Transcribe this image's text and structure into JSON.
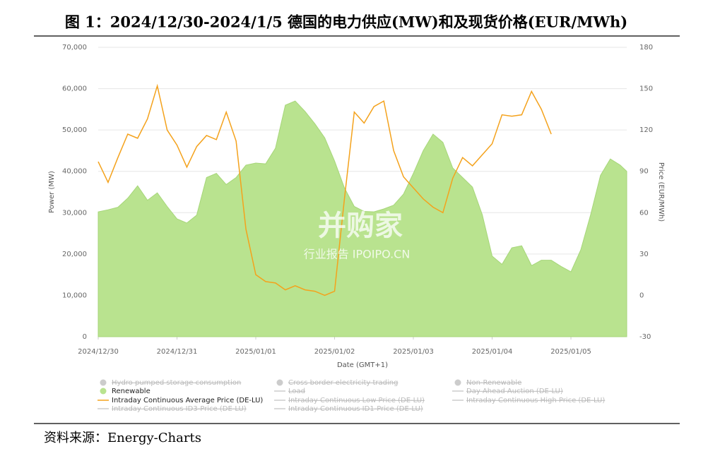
{
  "chart_data": {
    "type": "area_line",
    "title": "图 1：2024/12/30-2024/1/5 德国的电力供应(MW)和及现货价格(EUR/MWh)",
    "x_label": "Date (GMT+1)",
    "y_label": "Power (MW)",
    "y2_label": "Price (EUR/MWh)",
    "source": "资料来源：Energy-Charts",
    "watermark": [
      "并购家",
      "行业报告 IPOIPO.CN"
    ],
    "xlim": [
      0,
      161
    ],
    "xticks": [
      {
        "value": 0,
        "label": "2024/12/30"
      },
      {
        "value": 24,
        "label": "2024/12/31"
      },
      {
        "value": 48,
        "label": "2025/01/01"
      },
      {
        "value": 72,
        "label": "2025/01/02"
      },
      {
        "value": 96,
        "label": "2025/01/03"
      },
      {
        "value": 120,
        "label": "2025/01/04"
      },
      {
        "value": 144,
        "label": "2025/01/05"
      }
    ],
    "ylim": [
      0,
      70000
    ],
    "yticks": [
      0,
      {
        "value": 10000,
        "label": "10,000"
      },
      {
        "value": 20000,
        "label": "20,000"
      },
      {
        "value": 30000,
        "label": "30,000"
      },
      {
        "value": 40000,
        "label": "40,000"
      },
      {
        "value": 50000,
        "label": "50,000"
      },
      {
        "value": 60000,
        "label": "60,000"
      },
      {
        "value": 70000,
        "label": "70,000"
      }
    ],
    "y2lim": [
      -30,
      180
    ],
    "y2ticks": [
      -30,
      0,
      30,
      60,
      90,
      120,
      150,
      180
    ],
    "grid": true,
    "x": [
      0,
      3,
      6,
      9,
      12,
      15,
      18,
      21,
      24,
      27,
      30,
      33,
      36,
      39,
      42,
      45,
      48,
      51,
      54,
      57,
      60,
      63,
      66,
      69,
      72,
      75,
      78,
      81,
      84,
      87,
      90,
      93,
      96,
      99,
      102,
      105,
      108,
      111,
      114,
      117,
      120,
      123,
      126,
      129,
      132,
      135,
      138,
      141,
      144,
      147,
      150,
      153,
      156,
      159,
      161
    ],
    "series": [
      {
        "name": "Renewable",
        "kind": "area",
        "color": "#b9e38f",
        "values": [
          30200,
          30700,
          31300,
          33500,
          36500,
          33000,
          34800,
          31500,
          28500,
          27500,
          29400,
          38500,
          39500,
          36800,
          38500,
          41500,
          42000,
          41800,
          45600,
          56000,
          57000,
          54500,
          51500,
          48100,
          42500,
          36000,
          31500,
          30300,
          30200,
          30900,
          31800,
          34500,
          39500,
          45000,
          49000,
          47000,
          40800,
          38500,
          36200,
          29500,
          19500,
          17500,
          21500,
          22000,
          17200,
          18500,
          18500,
          17000,
          15700,
          21000,
          29500,
          39000,
          43000,
          41500,
          40000
        ]
      },
      {
        "name": "Intraday Continuous Average Price (DE-LU)",
        "kind": "line",
        "axis": "y2",
        "color": "#f4a21c",
        "values": [
          97,
          82,
          100,
          117,
          114,
          128,
          152,
          120,
          109,
          93,
          108,
          116,
          113,
          133,
          112,
          48,
          15,
          10,
          9,
          4,
          7,
          4,
          3,
          0,
          3,
          70,
          133,
          125,
          137,
          141,
          105,
          86,
          78,
          70,
          64,
          60,
          85,
          100,
          94,
          102,
          110,
          131,
          130,
          131,
          148,
          135,
          117,
          null,
          null,
          null,
          null,
          null,
          null,
          null,
          null
        ]
      }
    ],
    "legend_hidden": [
      {
        "name": "Hydro pumped storage consumption",
        "symbol": "dot"
      },
      {
        "name": "Cross border electricity trading",
        "symbol": "dot"
      },
      {
        "name": "Non-Renewable",
        "symbol": "dot"
      },
      {
        "name": "Load",
        "symbol": "line"
      },
      {
        "name": "Day Ahead Auction (DE-LU)",
        "symbol": "line"
      },
      {
        "name": "Intraday Continuous Low Price (DE-LU)",
        "symbol": "line"
      },
      {
        "name": "Intraday Continuous High Price (DE-LU)",
        "symbol": "line"
      },
      {
        "name": "Intraday Continuous ID3-Price (DE-LU)",
        "symbol": "line"
      },
      {
        "name": "Intraday Continuous ID1-Price (DE-LU)",
        "symbol": "line"
      }
    ]
  }
}
